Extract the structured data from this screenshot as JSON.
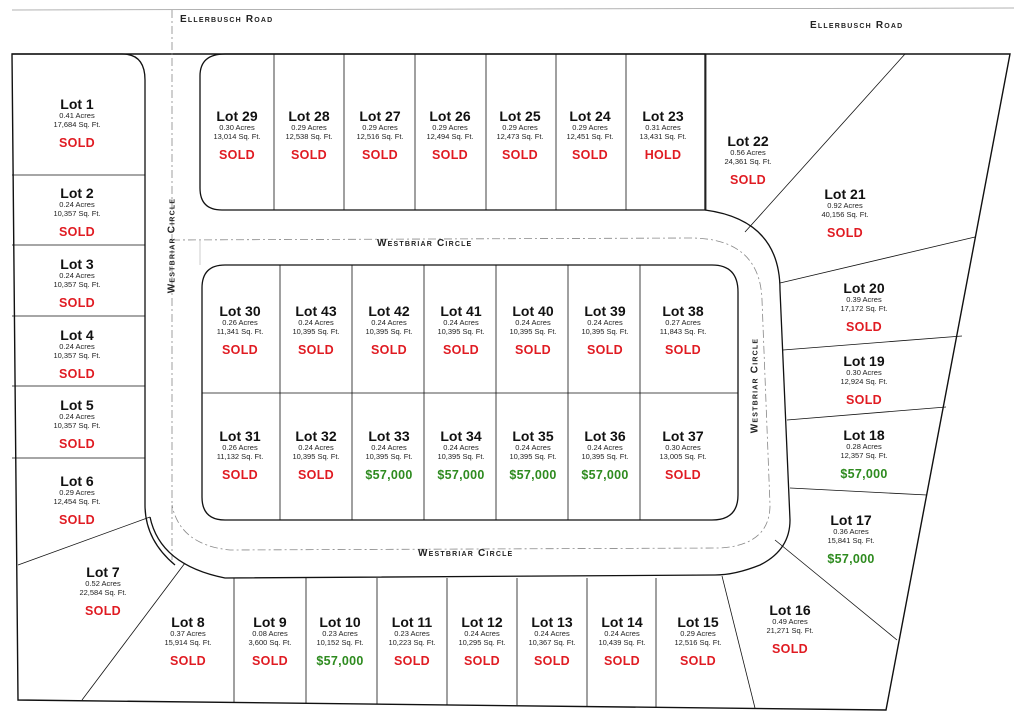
{
  "roads": {
    "ellerbusch_left": "Ellerbusch Road",
    "ellerbusch_right": "Ellerbusch Road",
    "westbriar_top": "Westbriar Circle",
    "westbriar_bottom": "Westbriar Circle",
    "westbriar_left": "Westbriar Circle",
    "westbriar_right": "Westbriar Circle"
  },
  "colors": {
    "sold": "#e01b22",
    "hold": "#e01b22",
    "price": "#2e8b1f",
    "line": "#111111"
  },
  "lots": [
    {
      "name": "Lot 1",
      "acres": "0.41 Acres",
      "sqft": "17,684 Sq. Ft.",
      "status": "SOLD",
      "kind": "sold"
    },
    {
      "name": "Lot 2",
      "acres": "0.24 Acres",
      "sqft": "10,357 Sq. Ft.",
      "status": "SOLD",
      "kind": "sold"
    },
    {
      "name": "Lot 3",
      "acres": "0.24 Acres",
      "sqft": "10,357 Sq. Ft.",
      "status": "SOLD",
      "kind": "sold"
    },
    {
      "name": "Lot 4",
      "acres": "0.24 Acres",
      "sqft": "10,357 Sq. Ft.",
      "status": "SOLD",
      "kind": "sold"
    },
    {
      "name": "Lot 5",
      "acres": "0.24 Acres",
      "sqft": "10,357 Sq. Ft.",
      "status": "SOLD",
      "kind": "sold"
    },
    {
      "name": "Lot 6",
      "acres": "0.29 Acres",
      "sqft": "12,454 Sq. Ft.",
      "status": "SOLD",
      "kind": "sold"
    },
    {
      "name": "Lot 7",
      "acres": "0.52 Acres",
      "sqft": "22,584 Sq. Ft.",
      "status": "SOLD",
      "kind": "sold"
    },
    {
      "name": "Lot 8",
      "acres": "0.37 Acres",
      "sqft": "15,914 Sq. Ft.",
      "status": "SOLD",
      "kind": "sold"
    },
    {
      "name": "Lot 9",
      "acres": "0.08 Acres",
      "sqft": "3,600 Sq. Ft.",
      "status": "SOLD",
      "kind": "sold"
    },
    {
      "name": "Lot 10",
      "acres": "0.23 Acres",
      "sqft": "10,152 Sq. Ft.",
      "status": "$57,000",
      "kind": "price"
    },
    {
      "name": "Lot 11",
      "acres": "0.23 Acres",
      "sqft": "10,223 Sq. Ft.",
      "status": "SOLD",
      "kind": "sold"
    },
    {
      "name": "Lot 12",
      "acres": "0.24 Acres",
      "sqft": "10,295 Sq. Ft.",
      "status": "SOLD",
      "kind": "sold"
    },
    {
      "name": "Lot 13",
      "acres": "0.24 Acres",
      "sqft": "10,367 Sq. Ft.",
      "status": "SOLD",
      "kind": "sold"
    },
    {
      "name": "Lot 14",
      "acres": "0.24 Acres",
      "sqft": "10,439 Sq. Ft.",
      "status": "SOLD",
      "kind": "sold"
    },
    {
      "name": "Lot 15",
      "acres": "0.29 Acres",
      "sqft": "12,516 Sq. Ft.",
      "status": "SOLD",
      "kind": "sold"
    },
    {
      "name": "Lot 16",
      "acres": "0.49 Acres",
      "sqft": "21,271 Sq. Ft.",
      "status": "SOLD",
      "kind": "sold"
    },
    {
      "name": "Lot 17",
      "acres": "0.36 Acres",
      "sqft": "15,841 Sq. Ft.",
      "status": "$57,000",
      "kind": "price"
    },
    {
      "name": "Lot 18",
      "acres": "0.28 Acres",
      "sqft": "12,357 Sq. Ft.",
      "status": "$57,000",
      "kind": "price"
    },
    {
      "name": "Lot 19",
      "acres": "0.30 Acres",
      "sqft": "12,924 Sq. Ft.",
      "status": "SOLD",
      "kind": "sold"
    },
    {
      "name": "Lot 20",
      "acres": "0.39 Acres",
      "sqft": "17,172 Sq. Ft.",
      "status": "SOLD",
      "kind": "sold"
    },
    {
      "name": "Lot 21",
      "acres": "0.92 Acres",
      "sqft": "40,156 Sq. Ft.",
      "status": "SOLD",
      "kind": "sold"
    },
    {
      "name": "Lot 22",
      "acres": "0.56 Acres",
      "sqft": "24,361 Sq. Ft.",
      "status": "SOLD",
      "kind": "sold"
    },
    {
      "name": "Lot 23",
      "acres": "0.31 Acres",
      "sqft": "13,431 Sq. Ft.",
      "status": "HOLD",
      "kind": "hold"
    },
    {
      "name": "Lot 24",
      "acres": "0.29 Acres",
      "sqft": "12,451 Sq. Ft.",
      "status": "SOLD",
      "kind": "sold"
    },
    {
      "name": "Lot 25",
      "acres": "0.29 Acres",
      "sqft": "12,473 Sq. Ft.",
      "status": "SOLD",
      "kind": "sold"
    },
    {
      "name": "Lot 26",
      "acres": "0.29 Acres",
      "sqft": "12,494 Sq. Ft.",
      "status": "SOLD",
      "kind": "sold"
    },
    {
      "name": "Lot 27",
      "acres": "0.29 Acres",
      "sqft": "12,516 Sq. Ft.",
      "status": "SOLD",
      "kind": "sold"
    },
    {
      "name": "Lot 28",
      "acres": "0.29 Acres",
      "sqft": "12,538 Sq. Ft.",
      "status": "SOLD",
      "kind": "sold"
    },
    {
      "name": "Lot 29",
      "acres": "0.30 Acres",
      "sqft": "13,014 Sq. Ft.",
      "status": "SOLD",
      "kind": "sold"
    },
    {
      "name": "Lot 30",
      "acres": "0.26 Acres",
      "sqft": "11,341 Sq. Ft.",
      "status": "SOLD",
      "kind": "sold"
    },
    {
      "name": "Lot 31",
      "acres": "0.26 Acres",
      "sqft": "11,132 Sq. Ft.",
      "status": "SOLD",
      "kind": "sold"
    },
    {
      "name": "Lot 32",
      "acres": "0.24 Acres",
      "sqft": "10,395 Sq. Ft.",
      "status": "SOLD",
      "kind": "sold"
    },
    {
      "name": "Lot 33",
      "acres": "0.24 Acres",
      "sqft": "10,395 Sq. Ft.",
      "status": "$57,000",
      "kind": "price"
    },
    {
      "name": "Lot 34",
      "acres": "0.24 Acres",
      "sqft": "10,395 Sq. Ft.",
      "status": "$57,000",
      "kind": "price"
    },
    {
      "name": "Lot 35",
      "acres": "0.24 Acres",
      "sqft": "10,395 Sq. Ft.",
      "status": "$57,000",
      "kind": "price"
    },
    {
      "name": "Lot 36",
      "acres": "0.24 Acres",
      "sqft": "10,395 Sq. Ft.",
      "status": "$57,000",
      "kind": "price"
    },
    {
      "name": "Lot 37",
      "acres": "0.30 Acres",
      "sqft": "13,005 Sq. Ft.",
      "status": "SOLD",
      "kind": "sold"
    },
    {
      "name": "Lot 38",
      "acres": "0.27 Acres",
      "sqft": "11,843 Sq. Ft.",
      "status": "SOLD",
      "kind": "sold"
    },
    {
      "name": "Lot 39",
      "acres": "0.24 Acres",
      "sqft": "10,395 Sq. Ft.",
      "status": "SOLD",
      "kind": "sold"
    },
    {
      "name": "Lot 40",
      "acres": "0.24 Acres",
      "sqft": "10,395 Sq. Ft.",
      "status": "SOLD",
      "kind": "sold"
    },
    {
      "name": "Lot 41",
      "acres": "0.24 Acres",
      "sqft": "10,395 Sq. Ft.",
      "status": "SOLD",
      "kind": "sold"
    },
    {
      "name": "Lot 42",
      "acres": "0.24 Acres",
      "sqft": "10,395 Sq. Ft.",
      "status": "SOLD",
      "kind": "sold"
    },
    {
      "name": "Lot 43",
      "acres": "0.24 Acres",
      "sqft": "10,395 Sq. Ft.",
      "status": "SOLD",
      "kind": "sold"
    }
  ]
}
